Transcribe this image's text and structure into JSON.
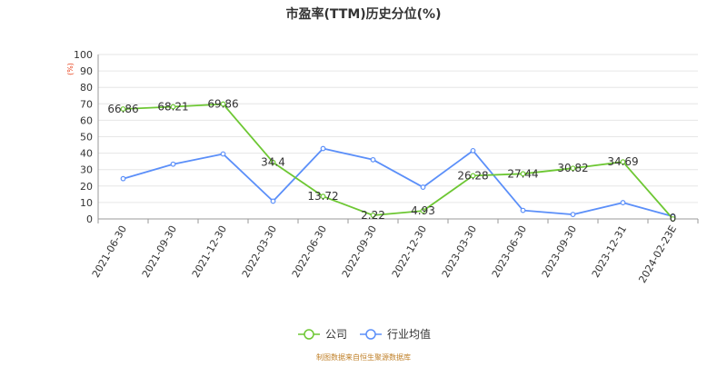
{
  "chart_data": {
    "type": "line",
    "title": "市盈率(TTM)历史分位(%)",
    "y_unit": "(%)",
    "ylim": [
      0,
      100
    ],
    "y_ticks": [
      0,
      10,
      20,
      30,
      40,
      50,
      60,
      70,
      80,
      90,
      100
    ],
    "grid": true,
    "legend_position": "bottom-center",
    "categories": [
      "2021-06-30",
      "2021-09-30",
      "2021-12-30",
      "2022-03-30",
      "2022-06-30",
      "2022-09-30",
      "2022-12-30",
      "2023-03-30",
      "2023-06-30",
      "2023-09-30",
      "2023-12-31",
      "2024-02-23E"
    ],
    "series": [
      {
        "name": "公司",
        "color": "#6dc733",
        "values": [
          66.86,
          68.21,
          69.86,
          34.4,
          13.72,
          2.22,
          4.93,
          26.28,
          27.44,
          30.82,
          34.69,
          0
        ],
        "labels": [
          "66.86",
          "68.21",
          "69.86",
          "34.4",
          "13.72",
          "2.22",
          "4.93",
          "26.28",
          "27.44",
          "30.82",
          "34.69",
          "0"
        ]
      },
      {
        "name": "行业均值",
        "color": "#5b8ff9",
        "values": [
          24.5,
          33.3,
          39.5,
          10.8,
          42.8,
          36.0,
          19.3,
          41.5,
          5.2,
          2.7,
          9.9,
          1.5
        ]
      }
    ]
  },
  "footer": {
    "source": "制图数据来自恒生聚源数据库"
  }
}
